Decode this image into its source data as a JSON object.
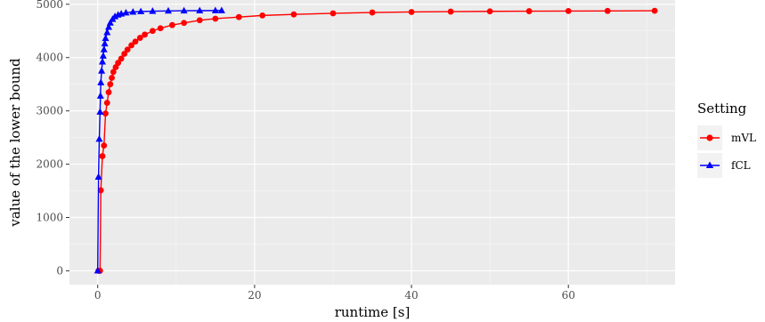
{
  "chart_data": {
    "type": "line",
    "xlabel": "runtime [s]",
    "ylabel": "value of the lower bound",
    "xlim": [
      -3.6,
      73.6
    ],
    "ylim": [
      -260,
      5080
    ],
    "x_ticks": [
      {
        "value": 0,
        "label": "0"
      },
      {
        "value": 20,
        "label": "20"
      },
      {
        "value": 40,
        "label": "40"
      },
      {
        "value": 60,
        "label": "60"
      }
    ],
    "y_ticks": [
      {
        "value": 0,
        "label": "0"
      },
      {
        "value": 1000,
        "label": "1000"
      },
      {
        "value": 2000,
        "label": "2000"
      },
      {
        "value": 3000,
        "label": "3000"
      },
      {
        "value": 4000,
        "label": "4000"
      },
      {
        "value": 5000,
        "label": "5000"
      }
    ],
    "grid": true,
    "legend": {
      "title": "Setting",
      "position": "right"
    },
    "series": [
      {
        "name": "mVL",
        "color": "#ff0000",
        "marker": "circle",
        "points": [
          [
            0.1,
            0
          ],
          [
            0.3,
            0
          ],
          [
            0.4,
            1510
          ],
          [
            0.6,
            2150
          ],
          [
            0.8,
            2350
          ],
          [
            1.0,
            2950
          ],
          [
            1.2,
            3150
          ],
          [
            1.4,
            3350
          ],
          [
            1.6,
            3500
          ],
          [
            1.8,
            3620
          ],
          [
            2.0,
            3730
          ],
          [
            2.3,
            3820
          ],
          [
            2.6,
            3900
          ],
          [
            3.0,
            3980
          ],
          [
            3.4,
            4070
          ],
          [
            3.8,
            4150
          ],
          [
            4.3,
            4230
          ],
          [
            4.8,
            4300
          ],
          [
            5.4,
            4370
          ],
          [
            6.0,
            4430
          ],
          [
            7.0,
            4500
          ],
          [
            8.0,
            4550
          ],
          [
            9.5,
            4610
          ],
          [
            11.0,
            4650
          ],
          [
            13.0,
            4700
          ],
          [
            15.0,
            4730
          ],
          [
            18.0,
            4760
          ],
          [
            21.0,
            4790
          ],
          [
            25.0,
            4810
          ],
          [
            30.0,
            4830
          ],
          [
            35.0,
            4845
          ],
          [
            40.0,
            4855
          ],
          [
            45.0,
            4862
          ],
          [
            50.0,
            4867
          ],
          [
            55.0,
            4870
          ],
          [
            60.0,
            4873
          ],
          [
            65.0,
            4875
          ],
          [
            71.0,
            4878
          ]
        ]
      },
      {
        "name": "fCL",
        "color": "#0000ff",
        "marker": "triangle",
        "points": [
          [
            0.0,
            0
          ],
          [
            0.1,
            1760
          ],
          [
            0.2,
            2470
          ],
          [
            0.3,
            2980
          ],
          [
            0.35,
            3280
          ],
          [
            0.4,
            3530
          ],
          [
            0.5,
            3750
          ],
          [
            0.6,
            3920
          ],
          [
            0.7,
            4030
          ],
          [
            0.8,
            4150
          ],
          [
            0.9,
            4260
          ],
          [
            1.0,
            4360
          ],
          [
            1.2,
            4470
          ],
          [
            1.4,
            4570
          ],
          [
            1.6,
            4650
          ],
          [
            1.9,
            4720
          ],
          [
            2.2,
            4770
          ],
          [
            2.6,
            4800
          ],
          [
            3.0,
            4820
          ],
          [
            3.6,
            4840
          ],
          [
            4.5,
            4855
          ],
          [
            5.5,
            4863
          ],
          [
            7.0,
            4870
          ],
          [
            9.0,
            4875
          ],
          [
            11.0,
            4878
          ],
          [
            13.0,
            4880
          ],
          [
            15.0,
            4882
          ],
          [
            15.8,
            4882
          ]
        ]
      }
    ]
  }
}
